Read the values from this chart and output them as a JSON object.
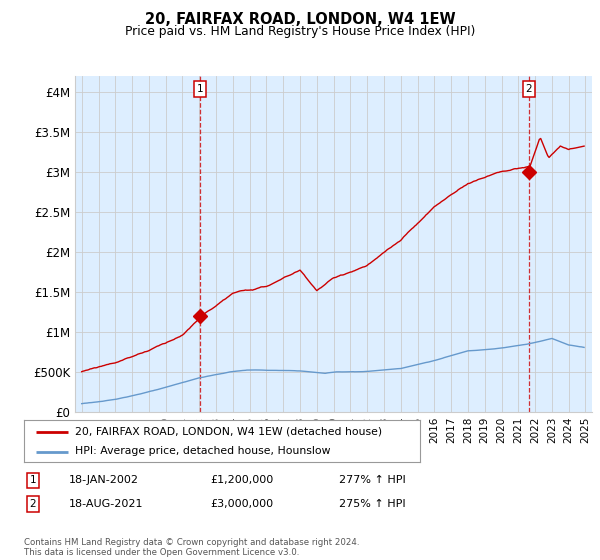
{
  "title": "20, FAIRFAX ROAD, LONDON, W4 1EW",
  "subtitle": "Price paid vs. HM Land Registry's House Price Index (HPI)",
  "ylabel_ticks": [
    "£0",
    "£500K",
    "£1M",
    "£1.5M",
    "£2M",
    "£2.5M",
    "£3M",
    "£3.5M",
    "£4M"
  ],
  "ytick_values": [
    0,
    500000,
    1000000,
    1500000,
    2000000,
    2500000,
    3000000,
    3500000,
    4000000
  ],
  "ylim": [
    0,
    4200000
  ],
  "xlim_start": 1994.6,
  "xlim_end": 2025.4,
  "sale1_date": 2002.05,
  "sale1_value": 1200000,
  "sale1_label": "1",
  "sale2_date": 2021.63,
  "sale2_value": 3000000,
  "sale2_label": "2",
  "red_color": "#cc0000",
  "blue_color": "#6699cc",
  "grid_color": "#cccccc",
  "plot_bg_color": "#ddeeff",
  "vline_color": "#cc0000",
  "legend_line1": "20, FAIRFAX ROAD, LONDON, W4 1EW (detached house)",
  "legend_line2": "HPI: Average price, detached house, Hounslow",
  "annotation1_label": "1",
  "annotation1_date": "18-JAN-2002",
  "annotation1_price": "£1,200,000",
  "annotation1_hpi": "277% ↑ HPI",
  "annotation2_label": "2",
  "annotation2_date": "18-AUG-2021",
  "annotation2_price": "£3,000,000",
  "annotation2_hpi": "275% ↑ HPI",
  "footer": "Contains HM Land Registry data © Crown copyright and database right 2024.\nThis data is licensed under the Open Government Licence v3.0.",
  "bg_color": "#ffffff"
}
